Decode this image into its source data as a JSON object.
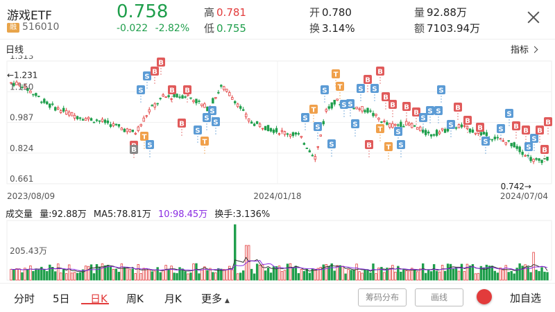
{
  "header": {
    "name": "游戏ETF",
    "badge": "融",
    "code": "516010",
    "price": "0.758",
    "change": "-0.022",
    "change_pct": "-2.82%",
    "high_label": "高",
    "high": "0.781",
    "low_label": "低",
    "low": "0.755",
    "open_label": "开",
    "open": "0.780",
    "turnover_label": "换",
    "turnover": "3.14%",
    "volume_label": "量",
    "volume": "92.88万",
    "amount_label": "额",
    "amount": "7103.94万"
  },
  "chart": {
    "title": "日线",
    "indicator_label": "指标",
    "y_ticks": [
      "1.313",
      "1.150",
      "0.987",
      "0.824",
      "0.661"
    ],
    "x_ticks": [
      "2023/08/09",
      "2024/01/18",
      "2024/07/04"
    ],
    "max_marker": "←1.231",
    "min_marker": "0.742→"
  },
  "volume_panel": {
    "title": "成交量",
    "vol": "量:92.88万",
    "ma5": "MA5:78.81万",
    "ma10": "10:98.45万",
    "turnover": "换手:3.136%",
    "y_label": "205.43万"
  },
  "tabs": [
    "分时",
    "5日",
    "日K",
    "周K",
    "月K",
    "更多"
  ],
  "active_tab": "日K",
  "buttons": {
    "chip": "筹码分布",
    "draw": "画线",
    "add_watchlist": "加自选"
  },
  "colors": {
    "up": "#e23b3b",
    "down": "#1e9e4b",
    "s_marker": "#5b9bd5",
    "b_marker": "#e05a5a",
    "t_marker": "#f0a04b"
  },
  "chart_data": {
    "type": "candlestick",
    "x_range": [
      "2023/08/09",
      "2024/07/04"
    ],
    "ylim": [
      0.661,
      1.313
    ],
    "max_value": 1.231,
    "min_value": 0.742,
    "last_close": 0.758
  }
}
